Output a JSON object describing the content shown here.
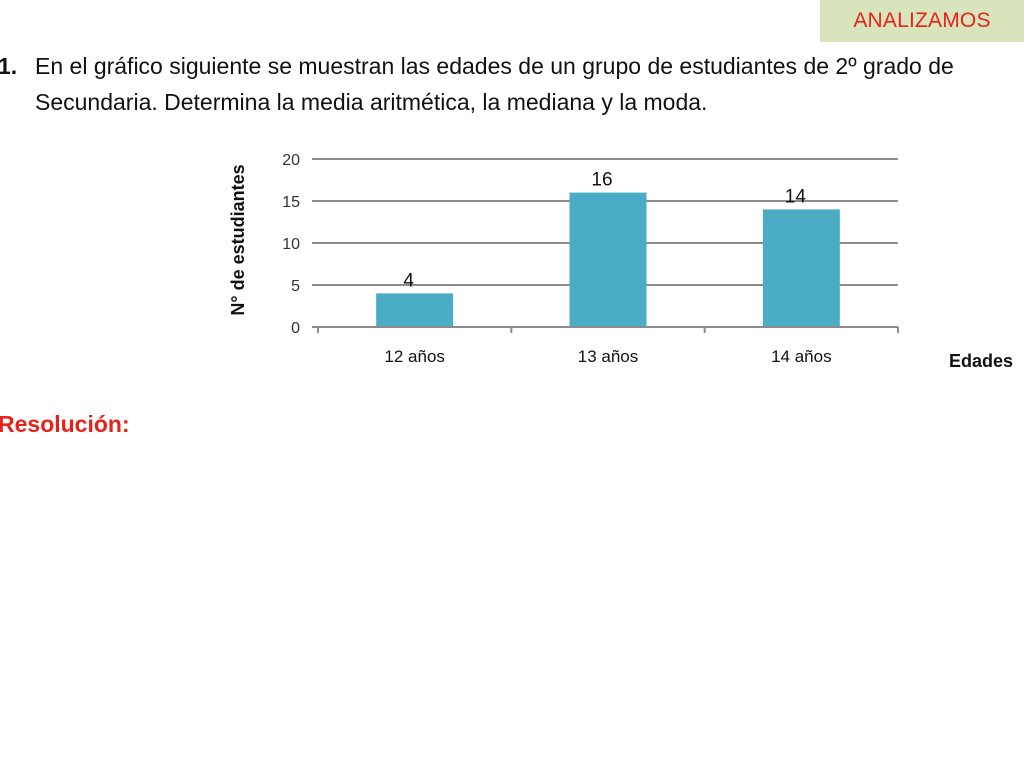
{
  "badge": {
    "label": "ANALIZAMOS",
    "bg_color": "#d8e4bc",
    "text_color": "#e8221b"
  },
  "problem": {
    "number": "1.",
    "text": "En el gráfico siguiente se muestran las edades de  un grupo de estudiantes de 2º grado de Secundaria. Determina la media aritmética, la mediana  y  la moda."
  },
  "chart_data": {
    "type": "bar",
    "categories": [
      "12 años",
      "13 años",
      "14 años"
    ],
    "values": [
      4,
      16,
      14
    ],
    "data_labels": [
      "4",
      "16",
      "14"
    ],
    "title": "",
    "xlabel": "Edades",
    "ylabel": "N° de estudiantes",
    "ylim": [
      0,
      20
    ],
    "yticks": [
      "0",
      "5",
      "10",
      "15",
      "20"
    ],
    "grid": true,
    "bar_color": "#4bacc6"
  },
  "resolution": {
    "label": "Resolución:",
    "color": "#e8221b"
  }
}
